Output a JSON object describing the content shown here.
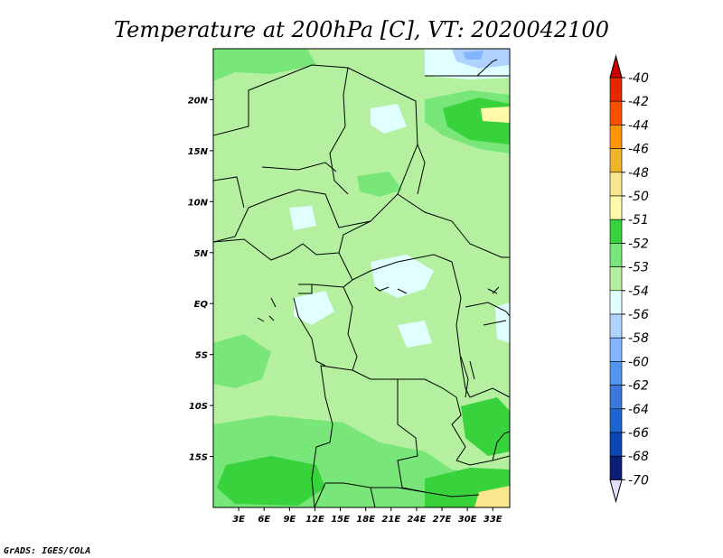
{
  "title": "Temperature at 200hPa [C], VT: 2020042100",
  "credit": "GrADS: IGES/COLA",
  "map": {
    "lon_ticks": [
      "3E",
      "6E",
      "9E",
      "12E",
      "15E",
      "18E",
      "21E",
      "24E",
      "27E",
      "30E",
      "33E"
    ],
    "lat_ticks": [
      "20N",
      "15N",
      "10N",
      "5N",
      "EQ",
      "5S",
      "10S",
      "15S"
    ],
    "lon_values": [
      3,
      6,
      9,
      12,
      15,
      18,
      21,
      24,
      27,
      30,
      33
    ],
    "lat_values": [
      20,
      15,
      10,
      5,
      0,
      -5,
      -10,
      -15
    ],
    "lon_range": [
      0,
      35
    ],
    "lat_range": [
      -20,
      25
    ],
    "background_color": "#b4f0a0"
  },
  "colorbar": {
    "levels": [
      {
        "label": "-40",
        "color": "#c80000"
      },
      {
        "label": "-42",
        "color": "#e62800"
      },
      {
        "label": "-44",
        "color": "#ff5000"
      },
      {
        "label": "-46",
        "color": "#ff9600"
      },
      {
        "label": "-48",
        "color": "#f0b428"
      },
      {
        "label": "-50",
        "color": "#fae68c"
      },
      {
        "label": "-51",
        "color": "#fffaaa"
      },
      {
        "label": "-52",
        "color": "#37d23c"
      },
      {
        "label": "-53",
        "color": "#78e678"
      },
      {
        "label": "-54",
        "color": "#b4f0a0"
      },
      {
        "label": "-56",
        "color": "#e1ffff"
      },
      {
        "label": "-58",
        "color": "#afd2ff"
      },
      {
        "label": "-60",
        "color": "#82b4ff"
      },
      {
        "label": "-62",
        "color": "#5096f0"
      },
      {
        "label": "-64",
        "color": "#3c78dc"
      },
      {
        "label": "-66",
        "color": "#1e64d2"
      },
      {
        "label": "-68",
        "color": "#0a46b4"
      },
      {
        "label": "-70",
        "color": "#0a1e78"
      }
    ],
    "bottom_triangle_color": "#e1e1ff",
    "top_triangle_color": "#c80000"
  }
}
